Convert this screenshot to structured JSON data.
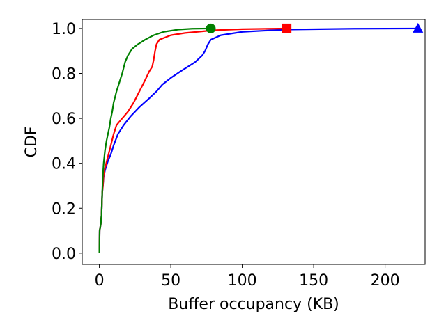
{
  "chart_data": {
    "type": "line",
    "xlabel": "Buffer occupancy (KB)",
    "ylabel": "CDF",
    "xlim": [
      -12,
      228
    ],
    "ylim": [
      -0.05,
      1.04
    ],
    "xticks": [
      0,
      50,
      100,
      150,
      200
    ],
    "yticks": [
      0.0,
      0.2,
      0.4,
      0.6,
      0.8,
      1.0
    ],
    "xtick_labels": [
      "0",
      "50",
      "100",
      "150",
      "200"
    ],
    "ytick_labels": [
      "0.0",
      "0.2",
      "0.4",
      "0.6",
      "0.8",
      "1.0"
    ],
    "grid": false,
    "series": [
      {
        "color": "#0000ff",
        "marker": "triangle",
        "points": [
          [
            0,
            0.0
          ],
          [
            0.2,
            0.1
          ],
          [
            1,
            0.13
          ],
          [
            1.5,
            0.17
          ],
          [
            2,
            0.27
          ],
          [
            2.5,
            0.3
          ],
          [
            3,
            0.34
          ],
          [
            4,
            0.37
          ],
          [
            6,
            0.41
          ],
          [
            8,
            0.44
          ],
          [
            10,
            0.48
          ],
          [
            13,
            0.53
          ],
          [
            17,
            0.57
          ],
          [
            22,
            0.61
          ],
          [
            28,
            0.65
          ],
          [
            35,
            0.69
          ],
          [
            40,
            0.72
          ],
          [
            44,
            0.75
          ],
          [
            50,
            0.78
          ],
          [
            57,
            0.81
          ],
          [
            62,
            0.83
          ],
          [
            67,
            0.85
          ],
          [
            72,
            0.88
          ],
          [
            74,
            0.9
          ],
          [
            76,
            0.93
          ],
          [
            78,
            0.95
          ],
          [
            85,
            0.97
          ],
          [
            100,
            0.985
          ],
          [
            130,
            0.995
          ],
          [
            180,
            0.999
          ],
          [
            223,
            1.0
          ]
        ]
      },
      {
        "color": "#ff0000",
        "marker": "square",
        "points": [
          [
            0,
            0.0
          ],
          [
            0.2,
            0.1
          ],
          [
            1,
            0.13
          ],
          [
            1.5,
            0.17
          ],
          [
            2,
            0.27
          ],
          [
            2.5,
            0.3
          ],
          [
            3,
            0.35
          ],
          [
            4,
            0.38
          ],
          [
            6,
            0.43
          ],
          [
            8,
            0.48
          ],
          [
            10,
            0.53
          ],
          [
            12,
            0.57
          ],
          [
            16,
            0.6
          ],
          [
            20,
            0.63
          ],
          [
            24,
            0.67
          ],
          [
            28,
            0.72
          ],
          [
            32,
            0.77
          ],
          [
            35,
            0.81
          ],
          [
            37,
            0.83
          ],
          [
            38,
            0.86
          ],
          [
            39,
            0.9
          ],
          [
            40,
            0.93
          ],
          [
            42,
            0.95
          ],
          [
            50,
            0.97
          ],
          [
            60,
            0.98
          ],
          [
            80,
            0.992
          ],
          [
            100,
            0.997
          ],
          [
            131,
            1.0
          ]
        ]
      },
      {
        "color": "#008000",
        "marker": "circle",
        "points": [
          [
            0,
            0.0
          ],
          [
            0.2,
            0.1
          ],
          [
            1,
            0.13
          ],
          [
            1.5,
            0.17
          ],
          [
            2,
            0.27
          ],
          [
            2.5,
            0.35
          ],
          [
            3,
            0.4
          ],
          [
            4,
            0.46
          ],
          [
            5,
            0.5
          ],
          [
            6,
            0.53
          ],
          [
            7,
            0.56
          ],
          [
            8,
            0.6
          ],
          [
            9,
            0.63
          ],
          [
            10,
            0.67
          ],
          [
            12,
            0.72
          ],
          [
            14,
            0.76
          ],
          [
            16,
            0.8
          ],
          [
            18,
            0.85
          ],
          [
            20,
            0.88
          ],
          [
            23,
            0.91
          ],
          [
            27,
            0.93
          ],
          [
            32,
            0.95
          ],
          [
            38,
            0.97
          ],
          [
            45,
            0.985
          ],
          [
            55,
            0.995
          ],
          [
            65,
            0.999
          ],
          [
            78,
            1.0
          ]
        ]
      }
    ]
  }
}
